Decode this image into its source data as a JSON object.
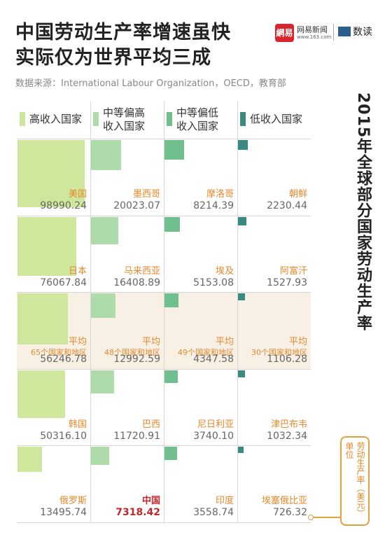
{
  "header": {
    "title_lines": [
      "中国劳动生产率增速虽快",
      "实际仅为世界平均三成"
    ],
    "source": "数据来源：International Labour Organization，OECD，教育部",
    "brand": {
      "logo": "網易",
      "name": "网易新闻",
      "url": "www.163.com",
      "column": "数读"
    }
  },
  "chart_data": {
    "type": "area-grid",
    "side_title": "2015年全球部分国家劳动生产率",
    "unit_lines": [
      "单位",
      "劳动生产率（美元）"
    ],
    "highlight": {
      "series": 1,
      "index": 4,
      "color": "#c0282d"
    },
    "average_row": 2,
    "series": [
      {
        "name": "高收入国家",
        "color": "#cfe79c",
        "categories": [
          "美国",
          "日本",
          "平均",
          "韩国",
          "俄罗斯"
        ],
        "notes": [
          null,
          null,
          "65个国家和地区",
          null,
          null
        ],
        "values": [
          98990.24,
          76067.84,
          56246.78,
          50316.1,
          13495.74
        ]
      },
      {
        "name": "中等偏高收入国家",
        "color": "#addbaa",
        "categories": [
          "墨西哥",
          "马来西亚",
          "平均",
          "巴西",
          "中国"
        ],
        "notes": [
          null,
          null,
          "48个国家和地区",
          null,
          null
        ],
        "values": [
          20023.07,
          16408.89,
          12992.59,
          11720.91,
          7318.42
        ]
      },
      {
        "name": "中等偏低收入国家",
        "color": "#6fbf8f",
        "categories": [
          "摩洛哥",
          "埃及",
          "平均",
          "尼日利亚",
          "印度"
        ],
        "notes": [
          null,
          null,
          "49个国家和地区",
          null,
          null
        ],
        "values": [
          8214.39,
          5153.08,
          4347.58,
          3740.1,
          3558.74
        ]
      },
      {
        "name": "低收入国家",
        "color": "#3b8a7f",
        "categories": [
          "朝鲜",
          "阿富汗",
          "平均",
          "津巴布韦",
          "埃塞俄比亚"
        ],
        "notes": [
          null,
          null,
          "30个国家和地区",
          null,
          null
        ],
        "values": [
          2230.44,
          1527.93,
          1106.28,
          1032.34,
          726.32
        ]
      }
    ]
  }
}
